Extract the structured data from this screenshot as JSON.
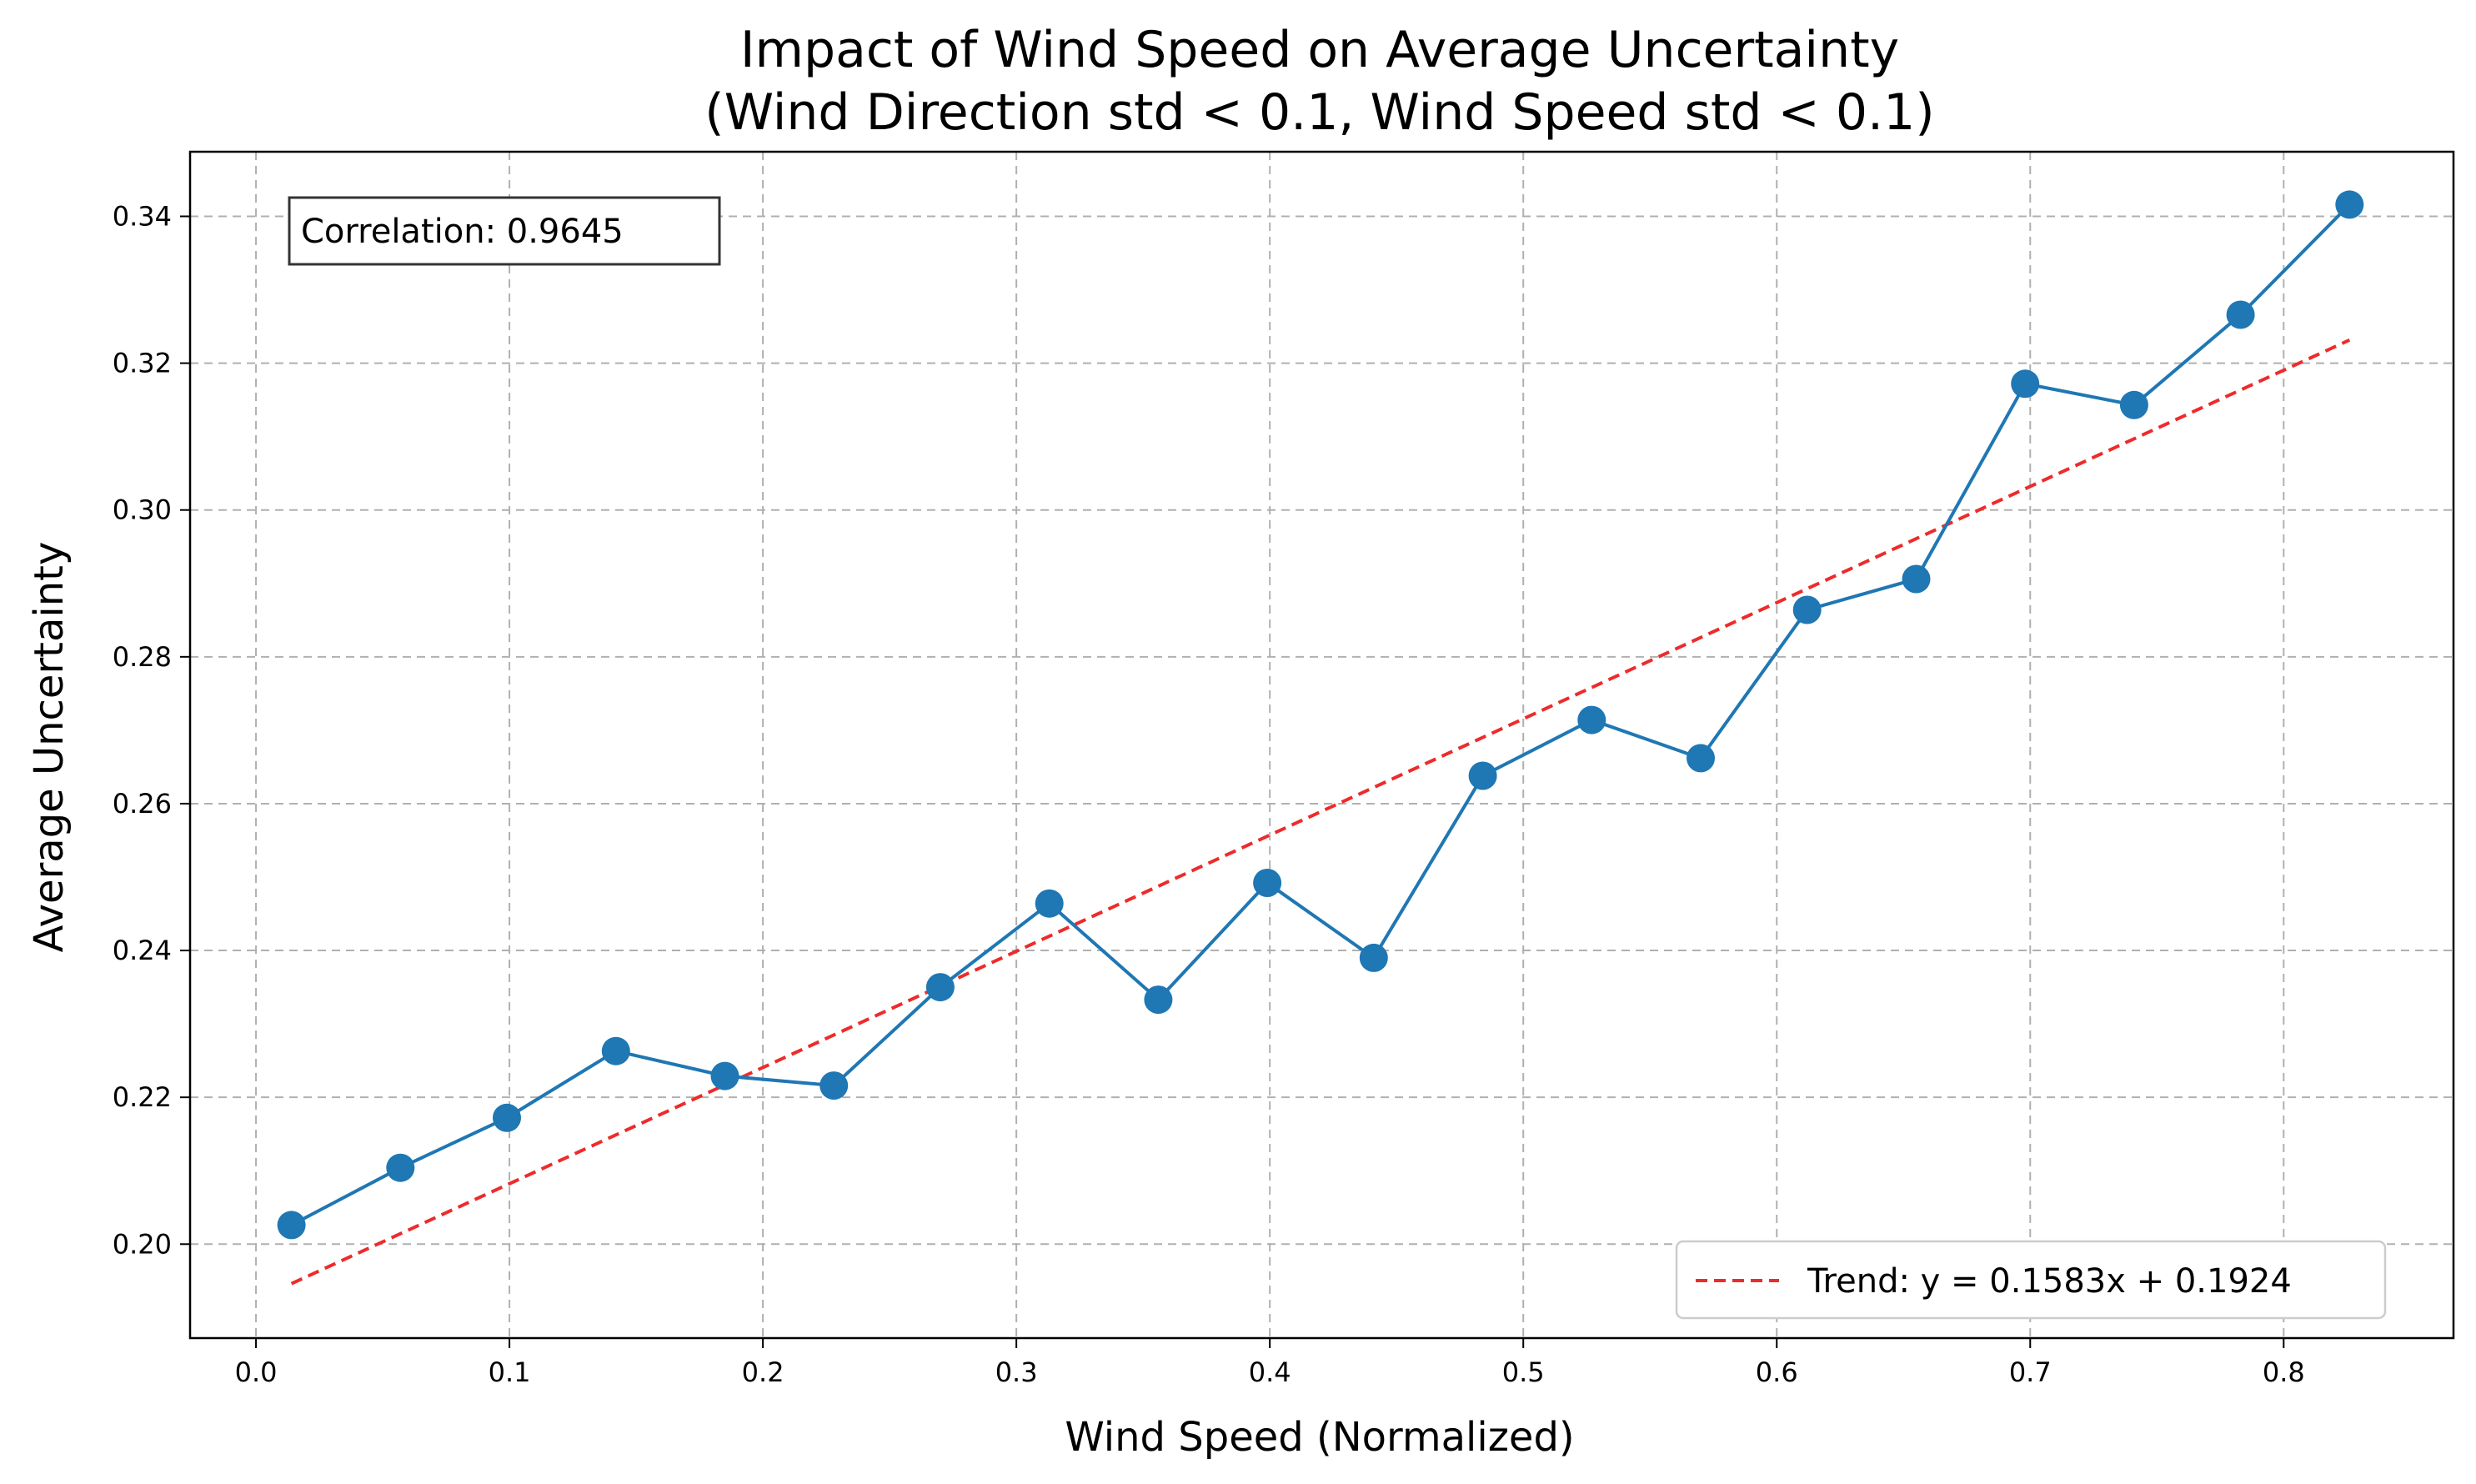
{
  "chart_data": {
    "type": "line",
    "title_line1": "Impact of Wind Speed on Average Uncertainty",
    "title_line2": "(Wind Direction std < 0.1, Wind Speed std < 0.1)",
    "xlabel": "Wind Speed (Normalized)",
    "ylabel": "Average Uncertainty",
    "xlim": [
      -0.026,
      0.867
    ],
    "ylim": [
      0.1872,
      0.3488
    ],
    "xticks": [
      0.0,
      0.1,
      0.2,
      0.3,
      0.4,
      0.5,
      0.6,
      0.7,
      0.8
    ],
    "xtick_labels": [
      "0.0",
      "0.1",
      "0.2",
      "0.3",
      "0.4",
      "0.5",
      "0.6",
      "0.7",
      "0.8"
    ],
    "yticks": [
      0.2,
      0.22,
      0.24,
      0.26,
      0.28,
      0.3,
      0.32,
      0.34
    ],
    "ytick_labels": [
      "0.20",
      "0.22",
      "0.24",
      "0.26",
      "0.28",
      "0.30",
      "0.32",
      "0.34"
    ],
    "grid": true,
    "legend_position": "lower-right",
    "colors": {
      "series": "#1f77b4",
      "trend": "#ee2b2b"
    },
    "series": [
      {
        "x": [
          0.014,
          0.057,
          0.099,
          0.142,
          0.185,
          0.228,
          0.27,
          0.313,
          0.356,
          0.399,
          0.441,
          0.484,
          0.527,
          0.57,
          0.612,
          0.655,
          0.698,
          0.741,
          0.783,
          0.826
        ],
        "y": [
          0.2026,
          0.2104,
          0.2172,
          0.2263,
          0.2229,
          0.2216,
          0.235,
          0.2464,
          0.2333,
          0.2492,
          0.239,
          0.2638,
          0.2714,
          0.2662,
          0.2864,
          0.2906,
          0.3172,
          0.3143,
          0.3266,
          0.3416
        ]
      }
    ],
    "trend": {
      "label": "Trend: y = 0.1583x + 0.1924",
      "slope": 0.1583,
      "intercept": 0.1924,
      "x_range": [
        0.014,
        0.826
      ]
    },
    "annotation": "Correlation: 0.9645"
  }
}
